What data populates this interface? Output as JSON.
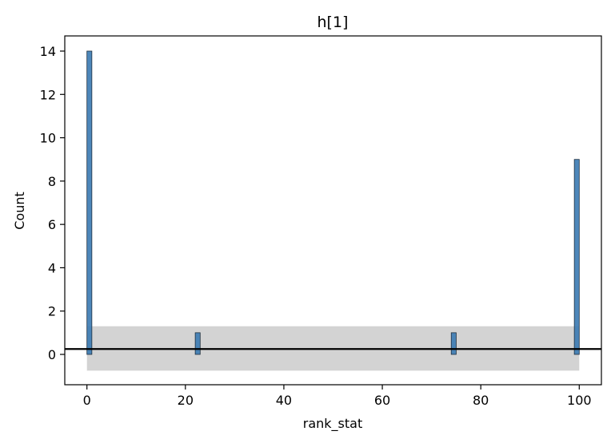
{
  "chart_data": {
    "type": "bar",
    "title": "h[1]",
    "xlabel": "rank_stat",
    "ylabel": "Count",
    "xlim": [
      -4.5,
      104.5
    ],
    "ylim": [
      -1.4,
      14.7
    ],
    "xticks": [
      0,
      20,
      40,
      60,
      80,
      100
    ],
    "yticks": [
      0,
      2,
      4,
      6,
      8,
      10,
      12,
      14
    ],
    "bin_width": 1,
    "bars": [
      {
        "x": 0,
        "count": 14
      },
      {
        "x": 22,
        "count": 1
      },
      {
        "x": 74,
        "count": 1
      },
      {
        "x": 99,
        "count": 9
      }
    ],
    "reference_line": {
      "y": 0.25
    },
    "reference_band": {
      "x_range": [
        0,
        100
      ],
      "y_range": [
        -0.75,
        1.3
      ]
    },
    "grid": false,
    "legend": "none",
    "colors": {
      "bar_fill": "#3a7ab3",
      "bar_edge": "#1f2f3f",
      "band_fill": "#d3d3d3",
      "reference_line": "#000000"
    }
  }
}
